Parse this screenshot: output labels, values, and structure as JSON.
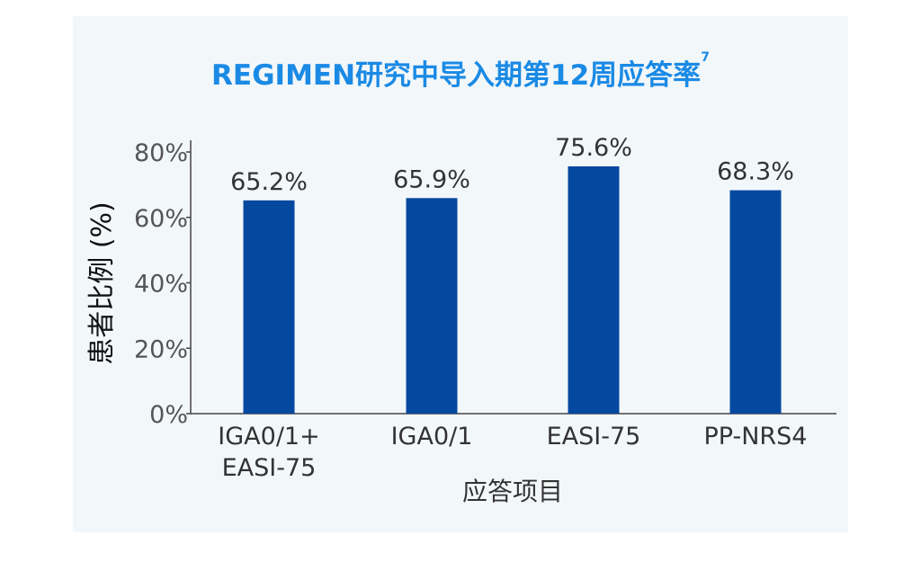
{
  "chart_data": {
    "type": "bar",
    "title": "REGIMEN研究中导入期第12周应答率",
    "title_superscript": "7",
    "categories": [
      [
        "IGA0/1+",
        "EASI-75"
      ],
      [
        "IGA0/1"
      ],
      [
        "EASI-75"
      ],
      [
        "PP-NRS4"
      ]
    ],
    "values": [
      65.2,
      65.9,
      75.6,
      68.3
    ],
    "data_labels": [
      "65.2%",
      "65.9%",
      "75.6%",
      "68.3%"
    ],
    "xlabel": "应答项目",
    "ylabel": "患者比例 (%)",
    "ylim": [
      0,
      80
    ],
    "yticks": [
      0,
      20,
      40,
      60,
      80
    ],
    "ytick_labels": [
      "0%",
      "20%",
      "40%",
      "60%",
      "80%"
    ],
    "bar_color": "#0548a0",
    "grid": false,
    "legend": "none"
  },
  "colors": {
    "title": "#1a8ae5",
    "panel_background": "#f2f7fa",
    "axis": "#444444"
  }
}
